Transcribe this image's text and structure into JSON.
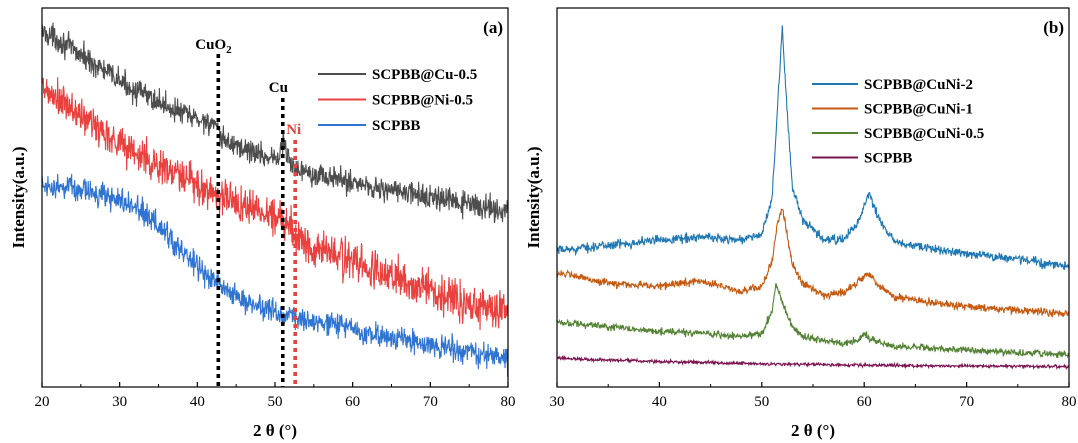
{
  "chart_data": [
    {
      "panel": "(a)",
      "type": "line",
      "xlabel": "2 θ (°)",
      "ylabel": "Intensity(a.u.)",
      "xlim": [
        20,
        80
      ],
      "xticks": [
        "20",
        "30",
        "40",
        "50",
        "60",
        "70",
        "80"
      ],
      "y_tick_labels": false,
      "legend_position": "top-right",
      "series": [
        {
          "name": "SCPBB@Cu-0.5",
          "color": "#4d4d4d",
          "x": [
            20,
            22,
            25,
            28,
            31,
            34,
            37,
            40,
            42,
            43,
            46,
            49,
            50.5,
            51,
            52,
            54,
            57,
            60,
            63,
            66,
            70,
            74,
            77,
            80
          ],
          "y": [
            8.6,
            8.4,
            8.0,
            7.6,
            7.2,
            6.9,
            6.6,
            6.35,
            6.25,
            5.85,
            5.6,
            5.4,
            5.35,
            5.85,
            5.15,
            5.05,
            4.85,
            4.75,
            4.6,
            4.5,
            4.35,
            4.2,
            4.1,
            4.0
          ],
          "noise": 0.22
        },
        {
          "name": "SCPBB@Ni-0.5",
          "color": "#e8413e",
          "x": [
            20,
            23,
            26,
            29,
            32,
            35,
            38,
            41,
            43,
            46,
            49,
            51,
            52,
            52.5,
            54,
            57,
            60,
            64,
            68,
            72,
            76,
            80
          ],
          "y": [
            7.1,
            6.7,
            6.3,
            5.9,
            5.5,
            5.15,
            4.85,
            4.55,
            4.4,
            4.15,
            3.95,
            3.85,
            3.7,
            3.35,
            3.2,
            2.95,
            2.7,
            2.4,
            2.1,
            1.85,
            1.6,
            1.4
          ],
          "noise": 0.35
        },
        {
          "name": "SCPBB",
          "color": "#2f74d0",
          "x": [
            20,
            23,
            26,
            29,
            31,
            33,
            35,
            37,
            39,
            41,
            43,
            45,
            48,
            51,
            54,
            57,
            60,
            64,
            68,
            72,
            76,
            80
          ],
          "y": [
            4.7,
            4.6,
            4.5,
            4.35,
            4.2,
            3.95,
            3.6,
            3.2,
            2.8,
            2.4,
            2.05,
            1.8,
            1.55,
            1.35,
            1.2,
            1.1,
            0.95,
            0.8,
            0.65,
            0.5,
            0.35,
            0.2
          ],
          "noise": 0.22
        }
      ],
      "reference_lines": [
        {
          "label": "CuO2",
          "x": 42.7,
          "color": "#000000"
        },
        {
          "label": "Cu",
          "x": 51.0,
          "color": "#000000"
        },
        {
          "label": "Ni",
          "x": 52.6,
          "color": "#e8413e"
        }
      ]
    },
    {
      "panel": "(b)",
      "type": "line",
      "xlabel": "2 θ (°)",
      "ylabel": "Intensity(a.u.)",
      "xlim": [
        30,
        80
      ],
      "xticks": [
        "30",
        "40",
        "50",
        "60",
        "70",
        "80"
      ],
      "y_tick_labels": false,
      "legend_position": "top-right",
      "series": [
        {
          "name": "SCPBB@CuNi-2",
          "color": "#1f77b4",
          "x": [
            30,
            35,
            40,
            44,
            48,
            50,
            51,
            51.5,
            52,
            52.5,
            53,
            54,
            56,
            58,
            59.5,
            60.5,
            61.5,
            63,
            66,
            70,
            75,
            80
          ],
          "y": [
            4.5,
            4.7,
            4.9,
            5.0,
            4.9,
            5.1,
            6.4,
            9.5,
            12.6,
            9.5,
            6.8,
            5.6,
            4.9,
            4.9,
            5.6,
            6.6,
            5.6,
            4.8,
            4.6,
            4.4,
            4.2,
            3.9
          ],
          "noise": 0.12
        },
        {
          "name": "SCPBB@CuNi-1",
          "color": "#c65a11",
          "x": [
            30,
            35,
            40,
            44,
            48,
            50,
            51,
            51.5,
            52,
            52.5,
            53,
            54,
            56,
            58,
            59.5,
            60.3,
            61.5,
            63,
            66,
            70,
            75,
            80
          ],
          "y": [
            3.7,
            3.3,
            3.2,
            3.4,
            3.0,
            3.2,
            4.1,
            5.4,
            6.1,
            5.0,
            4.0,
            3.3,
            2.9,
            2.95,
            3.4,
            3.7,
            3.2,
            2.8,
            2.6,
            2.45,
            2.3,
            2.2
          ],
          "noise": 0.1
        },
        {
          "name": "SCPBB@CuNi-0.5",
          "color": "#548235",
          "x": [
            30,
            35,
            40,
            44,
            48,
            50,
            51,
            51.4,
            52,
            53,
            54,
            56,
            58,
            59.3,
            60,
            61,
            63,
            66,
            70,
            75,
            80
          ],
          "y": [
            1.9,
            1.7,
            1.55,
            1.45,
            1.35,
            1.45,
            2.3,
            3.3,
            2.6,
            1.7,
            1.35,
            1.2,
            1.1,
            1.2,
            1.45,
            1.2,
            1.0,
            0.95,
            0.85,
            0.75,
            0.7
          ],
          "noise": 0.09
        },
        {
          "name": "SCPBB",
          "color": "#7b1450",
          "x": [
            30,
            40,
            50,
            60,
            70,
            80
          ],
          "y": [
            0.55,
            0.43,
            0.35,
            0.3,
            0.27,
            0.25
          ],
          "noise": 0.04
        }
      ]
    }
  ]
}
